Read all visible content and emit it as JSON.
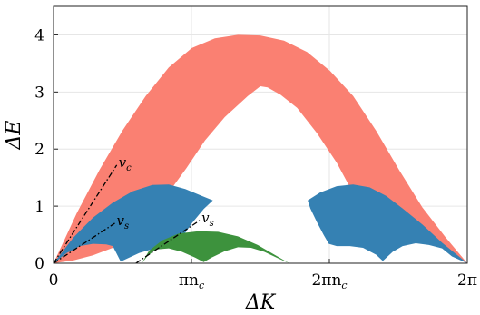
{
  "chart_data": {
    "type": "area",
    "xlabel": "ΔK",
    "ylabel": "ΔE",
    "xlim": [
      0,
      6.283
    ],
    "ylim": [
      0,
      4.5
    ],
    "grid": true,
    "xticks": [
      {
        "value": 0,
        "label": "0"
      },
      {
        "value": 2.0944,
        "label": "πn",
        "sub": "c"
      },
      {
        "value": 4.1888,
        "label": "2πn",
        "sub": "c"
      },
      {
        "value": 6.2832,
        "label": "2π",
        "sub": ""
      }
    ],
    "yticks": [
      {
        "value": 0,
        "label": "0"
      },
      {
        "value": 1,
        "label": "1"
      },
      {
        "value": 2,
        "label": "2"
      },
      {
        "value": 3,
        "label": "3"
      },
      {
        "value": 4,
        "label": "4"
      }
    ],
    "colors": {
      "charge_band": "#fa8072",
      "spin_band": "#3581b3",
      "third_band": "#3d923d"
    },
    "bands": [
      {
        "id": "charge",
        "color": "#fa8072",
        "upper": [
          [
            0,
            0
          ],
          [
            0.35,
            0.87
          ],
          [
            0.7,
            1.64
          ],
          [
            1.05,
            2.33
          ],
          [
            1.4,
            2.93
          ],
          [
            1.75,
            3.43
          ],
          [
            2.1,
            3.77
          ],
          [
            2.45,
            3.94
          ],
          [
            2.8,
            4.0
          ],
          [
            3.14,
            3.99
          ],
          [
            3.5,
            3.9
          ],
          [
            3.85,
            3.7
          ],
          [
            4.2,
            3.37
          ],
          [
            4.55,
            2.93
          ],
          [
            4.9,
            2.32
          ],
          [
            5.25,
            1.63
          ],
          [
            5.6,
            0.98
          ],
          [
            5.95,
            0.46
          ],
          [
            6.283,
            0
          ]
        ],
        "lower": [
          [
            6.283,
            0
          ],
          [
            6.0,
            0.18
          ],
          [
            5.8,
            0.38
          ],
          [
            5.6,
            0.55
          ],
          [
            5.4,
            0.62
          ],
          [
            5.2,
            0.56
          ],
          [
            5.0,
            0.4
          ],
          [
            4.85,
            0.6
          ],
          [
            4.6,
            1.12
          ],
          [
            4.3,
            1.76
          ],
          [
            4.0,
            2.28
          ],
          [
            3.7,
            2.72
          ],
          [
            3.45,
            2.95
          ],
          [
            3.25,
            3.08
          ],
          [
            3.14,
            3.1
          ],
          [
            2.95,
            2.93
          ],
          [
            2.6,
            2.56
          ],
          [
            2.3,
            2.15
          ],
          [
            2.02,
            1.67
          ],
          [
            1.8,
            1.32
          ],
          [
            1.5,
            0.75
          ],
          [
            1.2,
            0.45
          ],
          [
            0.9,
            0.27
          ],
          [
            0.6,
            0.14
          ],
          [
            0.3,
            0.05
          ],
          [
            0,
            0
          ]
        ]
      },
      {
        "id": "spin-left",
        "color": "#3581b3",
        "upper": [
          [
            0,
            0
          ],
          [
            0.3,
            0.45
          ],
          [
            0.6,
            0.8
          ],
          [
            0.9,
            1.06
          ],
          [
            1.2,
            1.26
          ],
          [
            1.5,
            1.37
          ],
          [
            1.75,
            1.38
          ],
          [
            2.0,
            1.3
          ],
          [
            2.25,
            1.18
          ],
          [
            2.42,
            1.1
          ]
        ],
        "lower": [
          [
            2.42,
            1.1
          ],
          [
            2.28,
            0.95
          ],
          [
            2.1,
            0.7
          ],
          [
            1.95,
            0.45
          ],
          [
            1.85,
            0.3
          ],
          [
            1.65,
            0.27
          ],
          [
            1.45,
            0.23
          ],
          [
            1.3,
            0.18
          ],
          [
            1.15,
            0.1
          ],
          [
            1.02,
            0.03
          ],
          [
            0.9,
            0.3
          ],
          [
            0.8,
            0.33
          ],
          [
            0.6,
            0.34
          ],
          [
            0.4,
            0.3
          ],
          [
            0.2,
            0.18
          ],
          [
            0,
            0
          ]
        ]
      },
      {
        "id": "spin-right",
        "color": "#3581b3",
        "upper": [
          [
            3.86,
            1.1
          ],
          [
            4.05,
            1.24
          ],
          [
            4.3,
            1.35
          ],
          [
            4.55,
            1.38
          ],
          [
            4.8,
            1.33
          ],
          [
            5.05,
            1.18
          ],
          [
            5.3,
            0.96
          ],
          [
            5.6,
            0.68
          ],
          [
            5.9,
            0.36
          ],
          [
            6.283,
            0
          ]
        ],
        "lower": [
          [
            6.283,
            0
          ],
          [
            6.05,
            0.12
          ],
          [
            5.9,
            0.26
          ],
          [
            5.7,
            0.32
          ],
          [
            5.5,
            0.35
          ],
          [
            5.3,
            0.3
          ],
          [
            5.15,
            0.2
          ],
          [
            5.0,
            0.04
          ],
          [
            4.9,
            0.15
          ],
          [
            4.7,
            0.27
          ],
          [
            4.5,
            0.3
          ],
          [
            4.3,
            0.3
          ],
          [
            4.18,
            0.34
          ],
          [
            4.1,
            0.5
          ],
          [
            4.0,
            0.72
          ],
          [
            3.9,
            0.96
          ],
          [
            3.86,
            1.1
          ]
        ]
      },
      {
        "id": "third",
        "color": "#3d923d",
        "upper": [
          [
            1.34,
            0
          ],
          [
            1.45,
            0.22
          ],
          [
            1.65,
            0.4
          ],
          [
            1.9,
            0.52
          ],
          [
            2.2,
            0.56
          ],
          [
            2.5,
            0.55
          ],
          [
            2.8,
            0.47
          ],
          [
            3.1,
            0.32
          ],
          [
            3.4,
            0.12
          ],
          [
            3.58,
            0
          ]
        ],
        "lower": [
          [
            3.58,
            0
          ],
          [
            3.4,
            0.09
          ],
          [
            3.2,
            0.2
          ],
          [
            3.0,
            0.27
          ],
          [
            2.8,
            0.28
          ],
          [
            2.6,
            0.21
          ],
          [
            2.4,
            0.1
          ],
          [
            2.28,
            0.02
          ],
          [
            2.15,
            0.1
          ],
          [
            1.95,
            0.2
          ],
          [
            1.75,
            0.26
          ],
          [
            1.55,
            0.24
          ],
          [
            1.42,
            0.12
          ],
          [
            1.34,
            0
          ]
        ]
      }
    ],
    "guides": [
      {
        "label": "v",
        "sub": "c",
        "x1": 0,
        "y1": 0,
        "x2": 0.96,
        "y2": 1.72
      },
      {
        "label": "v",
        "sub": "s",
        "x1": 0,
        "y1": 0,
        "x2": 0.93,
        "y2": 0.7
      },
      {
        "label": "v",
        "sub": "s",
        "x1": 1.25,
        "y1": 0,
        "x2": 2.22,
        "y2": 0.75
      }
    ]
  }
}
